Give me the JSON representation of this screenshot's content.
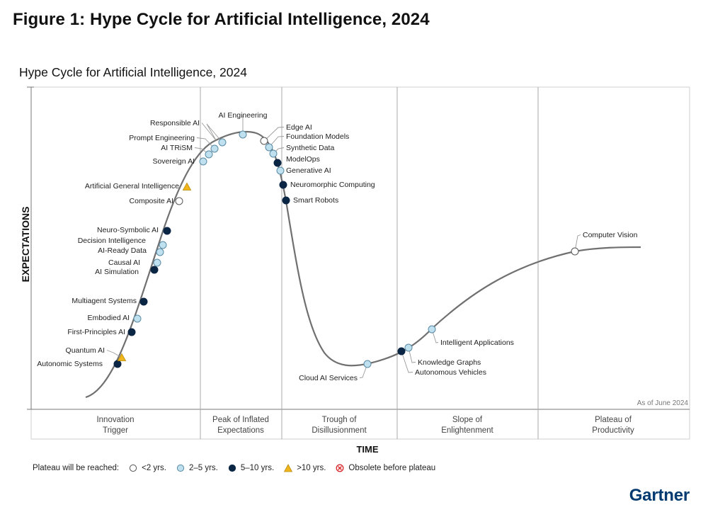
{
  "figure_title": "Figure 1: Hype Cycle for Artificial Intelligence, 2024",
  "brand": "Gartner",
  "chart_data": {
    "type": "scatter",
    "title": "Hype Cycle for Artificial Intelligence, 2024",
    "ylabel": "EXPECTATIONS",
    "xlabel": "TIME",
    "note": "As of June 2024",
    "grid": false,
    "phases": [
      {
        "line1": "Innovation",
        "line2": "Trigger"
      },
      {
        "line1": "Peak of Inflated",
        "line2": "Expectations"
      },
      {
        "line1": "Trough of",
        "line2": "Disillusionment"
      },
      {
        "line1": "Slope of",
        "line2": "Enlightenment"
      },
      {
        "line1": "Plateau of",
        "line2": "Productivity"
      }
    ],
    "categories": {
      "lt2": {
        "label": "<2 yrs.",
        "color": "#ffffff"
      },
      "2to5": {
        "label": "2–5 yrs.",
        "color": "#bfe0ee"
      },
      "5to10": {
        "label": "5–10 yrs.",
        "color": "#0b2545"
      },
      "gt10": {
        "label": ">10 yrs.",
        "color": "#f1b51c"
      },
      "obsolete": {
        "label": "Obsolete before plateau",
        "color": "#d9262b"
      }
    },
    "points": [
      {
        "name": "Autonomic Systems",
        "cat": "5to10"
      },
      {
        "name": "Quantum AI",
        "cat": "gt10"
      },
      {
        "name": "First-Principles AI",
        "cat": "5to10"
      },
      {
        "name": "Embodied AI",
        "cat": "2to5"
      },
      {
        "name": "Multiagent Systems",
        "cat": "5to10"
      },
      {
        "name": "AI Simulation",
        "cat": "5to10"
      },
      {
        "name": "Causal AI",
        "cat": "2to5"
      },
      {
        "name": "AI-Ready Data",
        "cat": "2to5"
      },
      {
        "name": "Decision Intelligence",
        "cat": "2to5"
      },
      {
        "name": "Neuro-Symbolic AI",
        "cat": "5to10"
      },
      {
        "name": "Composite AI",
        "cat": "lt2"
      },
      {
        "name": "Artificial General Intelligence",
        "cat": "gt10"
      },
      {
        "name": "Sovereign AI",
        "cat": "2to5"
      },
      {
        "name": "AI TRiSM",
        "cat": "2to5"
      },
      {
        "name": "Prompt Engineering",
        "cat": "2to5"
      },
      {
        "name": "Responsible AI",
        "cat": "2to5"
      },
      {
        "name": "AI Engineering",
        "cat": "2to5"
      },
      {
        "name": "Edge AI",
        "cat": "lt2"
      },
      {
        "name": "Foundation Models",
        "cat": "2to5"
      },
      {
        "name": "Synthetic Data",
        "cat": "2to5"
      },
      {
        "name": "ModelOps",
        "cat": "5to10"
      },
      {
        "name": "Generative AI",
        "cat": "2to5"
      },
      {
        "name": "Neuromorphic Computing",
        "cat": "5to10"
      },
      {
        "name": "Smart Robots",
        "cat": "5to10"
      },
      {
        "name": "Cloud AI Services",
        "cat": "2to5"
      },
      {
        "name": "Autonomous Vehicles",
        "cat": "5to10"
      },
      {
        "name": "Knowledge Graphs",
        "cat": "2to5"
      },
      {
        "name": "Intelligent Applications",
        "cat": "2to5"
      },
      {
        "name": "Computer Vision",
        "cat": "lt2"
      }
    ]
  },
  "legend": {
    "prefix": "Plateau will be reached:",
    "items": [
      {
        "label": "<2 yrs.",
        "icon": "circle-white"
      },
      {
        "label": "2–5 yrs.",
        "icon": "circle-light-blue"
      },
      {
        "label": "5–10 yrs.",
        "icon": "circle-navy"
      },
      {
        "label": ">10 yrs.",
        "icon": "triangle-yellow"
      },
      {
        "label": "Obsolete before plateau",
        "icon": "x-circle-red"
      }
    ]
  }
}
